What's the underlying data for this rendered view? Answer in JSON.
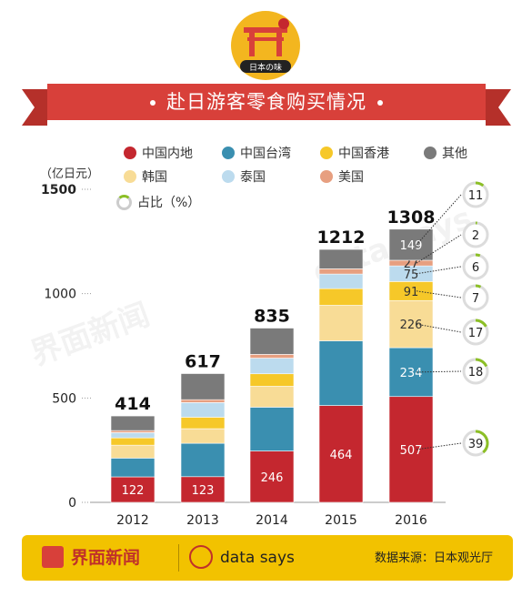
{
  "emblem_text": "日本の味",
  "title": "赴日游客零食购买情况",
  "unit_label": "（亿日元）",
  "share_legend_label": "占比（%）",
  "legend": [
    {
      "name": "中国内地",
      "color": "#c4272f"
    },
    {
      "name": "中国台湾",
      "color": "#3a8fb0"
    },
    {
      "name": "中国香港",
      "color": "#f6c829"
    },
    {
      "name": "其他",
      "color": "#7a7a7a"
    },
    {
      "name": "韩国",
      "color": "#f8dc96"
    },
    {
      "name": "泰国",
      "color": "#bcdbee"
    },
    {
      "name": "美国",
      "color": "#e79f80"
    }
  ],
  "footer": {
    "brand": "界面新闻",
    "data_says": "data says",
    "source": "数据来源：日本观光厅"
  },
  "chart_data": {
    "type": "bar",
    "stacked": true,
    "categories": [
      "2012",
      "2013",
      "2014",
      "2015",
      "2016"
    ],
    "totals": [
      414,
      617,
      835,
      1212,
      1308
    ],
    "ylim": [
      0,
      1500
    ],
    "yticks": [
      0,
      500,
      1000,
      1500
    ],
    "ylabel": "（亿日元）",
    "series": [
      {
        "name": "中国内地",
        "values": [
          122,
          123,
          246,
          464,
          507
        ]
      },
      {
        "name": "中国台湾",
        "values": [
          90,
          160,
          210,
          310,
          234
        ]
      },
      {
        "name": "韩国",
        "values": [
          62,
          70,
          100,
          170,
          226
        ]
      },
      {
        "name": "中国香港",
        "values": [
          35,
          55,
          60,
          80,
          91
        ]
      },
      {
        "name": "泰国",
        "values": [
          25,
          70,
          75,
          70,
          75
        ]
      },
      {
        "name": "美国",
        "values": [
          10,
          14,
          18,
          25,
          27
        ]
      },
      {
        "name": "其他",
        "values": [
          70,
          125,
          126,
          93,
          149
        ]
      }
    ],
    "segment_labels": {
      "中国内地": [
        "122",
        "123",
        "246",
        "464",
        "507"
      ],
      "中国台湾": [
        "",
        "",
        "",
        "",
        "234"
      ],
      "韩国": [
        "",
        "",
        "",
        "",
        "226"
      ],
      "中国香港": [
        "",
        "",
        "",
        "",
        "91"
      ],
      "泰国": [
        "",
        "",
        "",
        "",
        "75"
      ],
      "美国": [
        "",
        "",
        "",
        "",
        "27"
      ],
      "其他": [
        "",
        "",
        "",
        "",
        "149"
      ]
    },
    "share_2016": [
      {
        "name": "其他",
        "percent": 11
      },
      {
        "name": "美国",
        "percent": 2
      },
      {
        "name": "泰国",
        "percent": 6
      },
      {
        "name": "中国香港",
        "percent": 7
      },
      {
        "name": "韩国",
        "percent": 17
      },
      {
        "name": "中国台湾",
        "percent": 18
      },
      {
        "name": "中国内地",
        "percent": 39
      }
    ],
    "watermark": [
      "界面新闻",
      "data says"
    ]
  }
}
